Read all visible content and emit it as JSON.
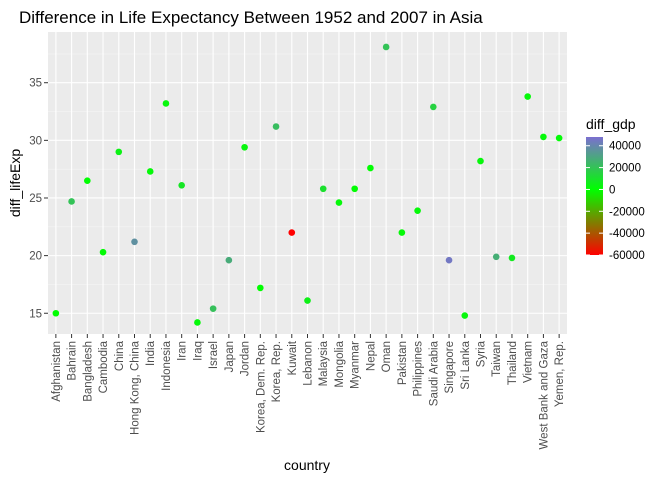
{
  "chart_data": {
    "type": "scatter",
    "title": "Difference in Life Expectancy Between 1952 and 2007 in Asia",
    "xlabel": "country",
    "ylabel": "diff_lifeExp",
    "ylim": [
      13.2,
      39.4
    ],
    "yticks": [
      15,
      20,
      25,
      30,
      35
    ],
    "grid": true,
    "legend": {
      "title": "diff_gdp",
      "placement": "right",
      "range": [
        -60000,
        48000
      ],
      "ticks": [
        40000,
        20000,
        0,
        -20000,
        -40000,
        -60000
      ],
      "tick_labels": [
        "40000",
        "20000",
        "0",
        "-20000",
        "-40000",
        "-60000"
      ],
      "colors": {
        "low": "#ff0000",
        "mid": "#00ff00",
        "high": "#7b6fd0"
      }
    },
    "points": [
      {
        "country": "Afghanistan",
        "diff_lifeExp": 15.0,
        "diff_gdp": 200
      },
      {
        "country": "Bahrain",
        "diff_lifeExp": 24.7,
        "diff_gdp": 20000
      },
      {
        "country": "Bangladesh",
        "diff_lifeExp": 26.5,
        "diff_gdp": 500
      },
      {
        "country": "Cambodia",
        "diff_lifeExp": 20.3,
        "diff_gdp": 1200
      },
      {
        "country": "China",
        "diff_lifeExp": 29.0,
        "diff_gdp": 4500
      },
      {
        "country": "Hong Kong, China",
        "diff_lifeExp": 21.2,
        "diff_gdp": 37000
      },
      {
        "country": "India",
        "diff_lifeExp": 27.3,
        "diff_gdp": 2000
      },
      {
        "country": "Indonesia",
        "diff_lifeExp": 33.2,
        "diff_gdp": 2800
      },
      {
        "country": "Iran",
        "diff_lifeExp": 26.1,
        "diff_gdp": 8500
      },
      {
        "country": "Iraq",
        "diff_lifeExp": 14.2,
        "diff_gdp": 2000
      },
      {
        "country": "Israel",
        "diff_lifeExp": 15.4,
        "diff_gdp": 21000
      },
      {
        "country": "Japan",
        "diff_lifeExp": 19.6,
        "diff_gdp": 28000
      },
      {
        "country": "Jordan",
        "diff_lifeExp": 29.4,
        "diff_gdp": 3000
      },
      {
        "country": "Korea, Dem. Rep.",
        "diff_lifeExp": 17.2,
        "diff_gdp": 200
      },
      {
        "country": "Korea, Rep.",
        "diff_lifeExp": 31.2,
        "diff_gdp": 22000
      },
      {
        "country": "Kuwait",
        "diff_lifeExp": 22.0,
        "diff_gdp": -60000
      },
      {
        "country": "Lebanon",
        "diff_lifeExp": 16.1,
        "diff_gdp": 5000
      },
      {
        "country": "Malaysia",
        "diff_lifeExp": 25.8,
        "diff_gdp": 10500
      },
      {
        "country": "Mongolia",
        "diff_lifeExp": 24.6,
        "diff_gdp": 2000
      },
      {
        "country": "Myanmar",
        "diff_lifeExp": 25.8,
        "diff_gdp": 600
      },
      {
        "country": "Nepal",
        "diff_lifeExp": 27.6,
        "diff_gdp": 500
      },
      {
        "country": "Oman",
        "diff_lifeExp": 38.1,
        "diff_gdp": 20000
      },
      {
        "country": "Pakistan",
        "diff_lifeExp": 22.0,
        "diff_gdp": 1900
      },
      {
        "country": "Philippines",
        "diff_lifeExp": 23.9,
        "diff_gdp": 1900
      },
      {
        "country": "Saudi Arabia",
        "diff_lifeExp": 32.9,
        "diff_gdp": 15000
      },
      {
        "country": "Singapore",
        "diff_lifeExp": 19.6,
        "diff_gdp": 45000
      },
      {
        "country": "Sri Lanka",
        "diff_lifeExp": 14.8,
        "diff_gdp": 2800
      },
      {
        "country": "Syria",
        "diff_lifeExp": 28.2,
        "diff_gdp": 2700
      },
      {
        "country": "Taiwan",
        "diff_lifeExp": 19.9,
        "diff_gdp": 27000
      },
      {
        "country": "Thailand",
        "diff_lifeExp": 19.8,
        "diff_gdp": 7000
      },
      {
        "country": "Vietnam",
        "diff_lifeExp": 33.8,
        "diff_gdp": 2000
      },
      {
        "country": "West Bank and Gaza",
        "diff_lifeExp": 30.3,
        "diff_gdp": 2000
      },
      {
        "country": "Yemen, Rep.",
        "diff_lifeExp": 30.2,
        "diff_gdp": 1500
      }
    ]
  }
}
